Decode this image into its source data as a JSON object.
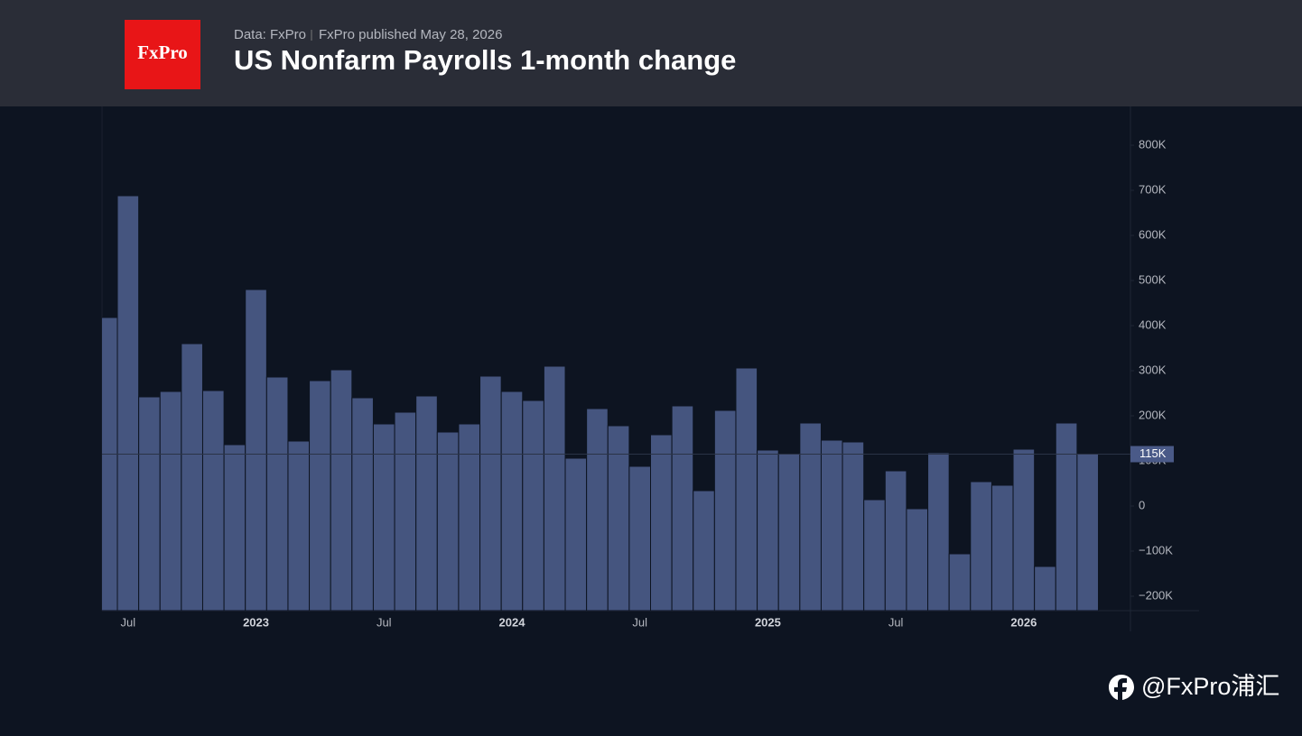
{
  "chart_data": {
    "type": "bar",
    "source": "Data: FxPro",
    "publisher": "FxPro published May 28, 2026",
    "title": "US Nonfarm Payrolls 1-month change",
    "logo": "FxPro",
    "watermark": "@FxPro浦汇",
    "categories": [
      null,
      "Jul",
      null,
      null,
      null,
      null,
      null,
      "2023",
      null,
      null,
      null,
      null,
      null,
      "Jul",
      null,
      null,
      null,
      null,
      null,
      "2024",
      null,
      null,
      null,
      null,
      null,
      "Jul",
      null,
      null,
      null,
      null,
      null,
      "2025",
      null,
      null,
      null,
      null,
      null,
      "Jul",
      null,
      null,
      null,
      null,
      null,
      "2026",
      null,
      null,
      null
    ],
    "values": [
      418,
      688,
      242,
      254,
      360,
      256,
      136,
      480,
      286,
      144,
      278,
      302,
      240,
      182,
      208,
      244,
      164,
      182,
      288,
      254,
      234,
      310,
      106,
      216,
      178,
      88,
      158,
      222,
      34,
      212,
      306,
      124,
      116,
      184,
      146,
      142,
      14,
      78,
      -6,
      118,
      -106,
      54,
      46,
      126,
      -134,
      184,
      115
    ],
    "last_value_label": "115K",
    "color": "#45557f",
    "ylim": [
      -232,
      886
    ],
    "yticks": [
      {
        "value": 800,
        "label": "800K"
      },
      {
        "value": 700,
        "label": "700K"
      },
      {
        "value": 600,
        "label": "600K"
      },
      {
        "value": 500,
        "label": "500K"
      },
      {
        "value": 400,
        "label": "400K"
      },
      {
        "value": 300,
        "label": "300K"
      },
      {
        "value": 200,
        "label": "200K"
      },
      {
        "value": 100,
        "label": "100K"
      },
      0,
      {
        "value": -100,
        "label": "−100K"
      },
      {
        "value": -200,
        "label": "−200K"
      }
    ],
    "grid": false
  }
}
